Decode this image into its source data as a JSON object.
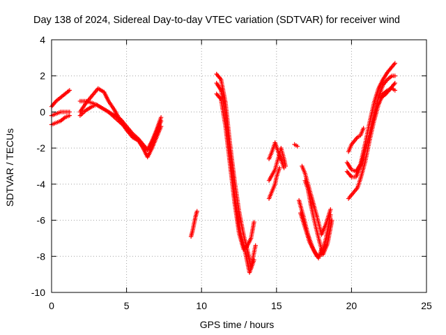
{
  "chart_data": {
    "type": "scatter",
    "title": "Day 138 of 2024, Sidereal Day-to-day VTEC variation (SDTVAR) for receiver wind",
    "xlabel": "GPS time / hours",
    "ylabel": "SDTVAR / TECUs",
    "xlim": [
      0,
      25
    ],
    "ylim": [
      -10,
      4
    ],
    "xticks": [
      0,
      5,
      10,
      15,
      20,
      25
    ],
    "yticks": [
      -10,
      -8,
      -6,
      -4,
      -2,
      0,
      2,
      4
    ],
    "grid": true,
    "marker": "+",
    "color": "#ff0000",
    "series": [
      {
        "segments": [
          [
            [
              0.0,
              0.3
            ],
            [
              0.3,
              0.6
            ],
            [
              0.6,
              0.8
            ],
            [
              0.9,
              1.0
            ],
            [
              1.2,
              1.2
            ]
          ],
          [
            [
              0.0,
              -0.2
            ],
            [
              0.3,
              -0.1
            ],
            [
              0.6,
              0.0
            ],
            [
              0.9,
              0.0
            ],
            [
              1.2,
              0.0
            ]
          ],
          [
            [
              0.0,
              -0.7
            ],
            [
              0.3,
              -0.6
            ],
            [
              0.6,
              -0.5
            ],
            [
              0.9,
              -0.3
            ],
            [
              1.2,
              -0.2
            ]
          ],
          [
            [
              1.9,
              0.0
            ],
            [
              2.3,
              0.5
            ],
            [
              2.7,
              0.9
            ],
            [
              3.1,
              1.3
            ],
            [
              3.5,
              1.1
            ],
            [
              3.8,
              0.6
            ],
            [
              4.2,
              0.1
            ],
            [
              4.6,
              -0.5
            ],
            [
              5.0,
              -1.0
            ],
            [
              5.4,
              -1.4
            ],
            [
              5.8,
              -1.6
            ],
            [
              6.1,
              -1.9
            ],
            [
              6.4,
              -2.1
            ],
            [
              6.7,
              -1.6
            ],
            [
              7.0,
              -1.0
            ],
            [
              7.3,
              -0.3
            ]
          ],
          [
            [
              1.9,
              0.6
            ],
            [
              2.3,
              0.6
            ],
            [
              2.7,
              0.5
            ],
            [
              3.0,
              0.4
            ],
            [
              3.4,
              0.2
            ],
            [
              3.8,
              0.0
            ],
            [
              4.2,
              -0.3
            ],
            [
              4.6,
              -0.6
            ],
            [
              5.0,
              -0.9
            ],
            [
              5.4,
              -1.3
            ],
            [
              5.8,
              -1.6
            ],
            [
              6.1,
              -2.0
            ],
            [
              6.4,
              -2.5
            ],
            [
              6.7,
              -2.0
            ],
            [
              7.0,
              -1.4
            ],
            [
              7.3,
              -0.8
            ]
          ],
          [
            [
              1.9,
              -0.2
            ],
            [
              2.3,
              0.1
            ],
            [
              2.7,
              0.3
            ],
            [
              3.0,
              0.4
            ],
            [
              3.4,
              0.2
            ],
            [
              3.8,
              0.0
            ],
            [
              4.2,
              -0.2
            ],
            [
              4.6,
              -0.4
            ],
            [
              5.0,
              -0.8
            ],
            [
              5.4,
              -1.2
            ],
            [
              5.8,
              -1.5
            ],
            [
              6.1,
              -1.8
            ],
            [
              6.4,
              -2.1
            ],
            [
              6.7,
              -1.7
            ],
            [
              7.0,
              -1.1
            ],
            [
              7.3,
              -0.5
            ]
          ],
          [
            [
              9.3,
              -6.9
            ],
            [
              9.4,
              -6.6
            ],
            [
              9.5,
              -6.2
            ],
            [
              9.6,
              -5.8
            ],
            [
              9.7,
              -5.5
            ]
          ],
          [
            [
              11.0,
              2.1
            ],
            [
              11.3,
              1.8
            ],
            [
              11.6,
              0.5
            ],
            [
              11.9,
              -1.8
            ],
            [
              12.2,
              -3.8
            ],
            [
              12.5,
              -5.5
            ],
            [
              12.8,
              -6.8
            ],
            [
              13.1,
              -7.8
            ],
            [
              13.3,
              -8.6
            ],
            [
              13.6,
              -7.4
            ]
          ],
          [
            [
              11.0,
              1.6
            ],
            [
              11.3,
              1.2
            ],
            [
              11.6,
              -0.2
            ],
            [
              11.9,
              -2.3
            ],
            [
              12.2,
              -4.5
            ],
            [
              12.5,
              -6.3
            ],
            [
              12.8,
              -7.4
            ],
            [
              13.0,
              -8.1
            ],
            [
              13.2,
              -8.9
            ],
            [
              13.5,
              -8.2
            ]
          ],
          [
            [
              11.0,
              1.0
            ],
            [
              11.3,
              0.7
            ],
            [
              11.6,
              -0.8
            ],
            [
              11.9,
              -2.9
            ],
            [
              12.2,
              -5.0
            ],
            [
              12.5,
              -6.7
            ],
            [
              12.8,
              -7.6
            ],
            [
              13.0,
              -7.5
            ],
            [
              13.3,
              -7.0
            ],
            [
              13.5,
              -6.1
            ]
          ],
          [
            [
              14.5,
              -2.6
            ],
            [
              14.7,
              -2.2
            ],
            [
              14.9,
              -1.7
            ],
            [
              15.2,
              -2.4
            ],
            [
              15.5,
              -3.1
            ]
          ],
          [
            [
              14.5,
              -3.8
            ],
            [
              14.7,
              -3.5
            ],
            [
              14.9,
              -3.2
            ],
            [
              15.1,
              -2.6
            ],
            [
              15.3,
              -2.0
            ],
            [
              15.5,
              -2.6
            ],
            [
              15.6,
              -3.0
            ]
          ],
          [
            [
              14.5,
              -4.8
            ],
            [
              14.7,
              -4.4
            ],
            [
              14.9,
              -4.0
            ],
            [
              15.0,
              -3.6
            ],
            [
              15.2,
              -3.1
            ]
          ],
          [
            [
              16.2,
              -1.8
            ],
            [
              16.4,
              -1.9
            ]
          ],
          [
            [
              16.7,
              -3.0
            ],
            [
              16.9,
              -3.4
            ],
            [
              17.1,
              -4.0
            ],
            [
              17.4,
              -4.9
            ],
            [
              17.7,
              -5.8
            ],
            [
              18.0,
              -6.8
            ],
            [
              18.3,
              -6.2
            ],
            [
              18.6,
              -5.4
            ]
          ],
          [
            [
              16.9,
              -3.8
            ],
            [
              17.1,
              -4.3
            ],
            [
              17.3,
              -5.2
            ],
            [
              17.6,
              -6.3
            ],
            [
              17.9,
              -7.3
            ],
            [
              18.1,
              -7.9
            ],
            [
              18.4,
              -7.3
            ],
            [
              18.7,
              -6.0
            ]
          ],
          [
            [
              16.5,
              -4.9
            ],
            [
              16.8,
              -5.8
            ],
            [
              17.1,
              -6.8
            ],
            [
              17.4,
              -7.5
            ],
            [
              17.7,
              -8.0
            ],
            [
              18.0,
              -7.9
            ],
            [
              18.3,
              -7.0
            ],
            [
              18.6,
              -5.7
            ]
          ],
          [
            [
              16.6,
              -5.6
            ],
            [
              16.9,
              -6.4
            ],
            [
              17.2,
              -7.2
            ],
            [
              17.5,
              -7.7
            ],
            [
              17.8,
              -8.1
            ],
            [
              18.0,
              -7.6
            ]
          ],
          [
            [
              19.7,
              -2.8
            ],
            [
              20.0,
              -3.2
            ],
            [
              20.3,
              -3.3
            ],
            [
              20.6,
              -2.9
            ],
            [
              20.9,
              -1.8
            ],
            [
              21.2,
              -0.6
            ],
            [
              21.5,
              0.5
            ],
            [
              21.8,
              1.3
            ],
            [
              22.1,
              1.8
            ],
            [
              22.4,
              2.2
            ],
            [
              22.7,
              2.5
            ],
            [
              22.9,
              2.7
            ]
          ],
          [
            [
              19.7,
              -3.3
            ],
            [
              20.0,
              -3.6
            ],
            [
              20.3,
              -3.6
            ],
            [
              20.6,
              -3.0
            ],
            [
              20.9,
              -2.2
            ],
            [
              21.2,
              -1.2
            ],
            [
              21.5,
              -0.2
            ],
            [
              21.8,
              0.8
            ],
            [
              22.1,
              1.5
            ],
            [
              22.4,
              1.8
            ],
            [
              22.7,
              2.0
            ],
            [
              22.9,
              2.0
            ]
          ],
          [
            [
              19.8,
              -2.2
            ],
            [
              20.0,
              -1.8
            ],
            [
              20.2,
              -1.6
            ],
            [
              20.4,
              -1.4
            ],
            [
              20.6,
              -1.3
            ],
            [
              20.8,
              -0.9
            ]
          ],
          [
            [
              19.8,
              -4.8
            ],
            [
              20.0,
              -4.6
            ],
            [
              20.2,
              -4.4
            ],
            [
              20.4,
              -4.2
            ],
            [
              20.6,
              -3.7
            ],
            [
              20.9,
              -2.8
            ],
            [
              21.2,
              -1.6
            ],
            [
              21.5,
              -0.5
            ],
            [
              21.8,
              0.4
            ],
            [
              22.1,
              1.0
            ],
            [
              22.4,
              1.2
            ],
            [
              22.7,
              1.3
            ],
            [
              22.9,
              1.2
            ]
          ],
          [
            [
              22.0,
              0.8
            ],
            [
              22.3,
              1.0
            ],
            [
              22.6,
              1.3
            ],
            [
              22.9,
              1.6
            ]
          ]
        ]
      }
    ]
  }
}
